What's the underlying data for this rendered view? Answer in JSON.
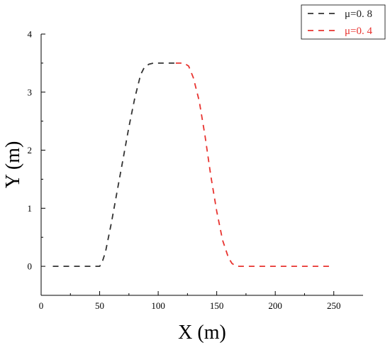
{
  "chart_data": {
    "type": "line",
    "xlabel": "X (m)",
    "ylabel": "Y (m)",
    "xlim": [
      0,
      275
    ],
    "ylim": [
      -0.5,
      4
    ],
    "xticks": [
      0,
      50,
      100,
      150,
      200,
      250
    ],
    "yticks": [
      0,
      1,
      2,
      3,
      4
    ],
    "xtick_labels": [
      "0",
      "50",
      "100",
      "150",
      "200",
      "250"
    ],
    "ytick_labels": [
      "0",
      "1",
      "2",
      "3",
      "4"
    ],
    "grid": false,
    "legend_position": "top-right",
    "series": [
      {
        "name": "μ=0. 8",
        "color": "#333333",
        "dash": "dashed",
        "x": [
          10,
          50,
          52,
          55,
          60,
          65,
          70,
          75,
          80,
          85,
          88,
          92,
          96,
          100,
          110,
          115
        ],
        "y": [
          0,
          0,
          0.06,
          0.25,
          0.75,
          1.3,
          1.85,
          2.4,
          2.9,
          3.3,
          3.42,
          3.48,
          3.5,
          3.5,
          3.5,
          3.5
        ]
      },
      {
        "name": "μ=0. 4",
        "color": "#e8332f",
        "dash": "dashed",
        "x": [
          115,
          122,
          126,
          130,
          135,
          140,
          145,
          150,
          155,
          160,
          163,
          166,
          169,
          175,
          200,
          225,
          248
        ],
        "y": [
          3.5,
          3.5,
          3.45,
          3.25,
          2.85,
          2.25,
          1.55,
          0.95,
          0.45,
          0.15,
          0.05,
          0.01,
          0,
          0,
          0,
          0,
          0
        ]
      }
    ]
  }
}
